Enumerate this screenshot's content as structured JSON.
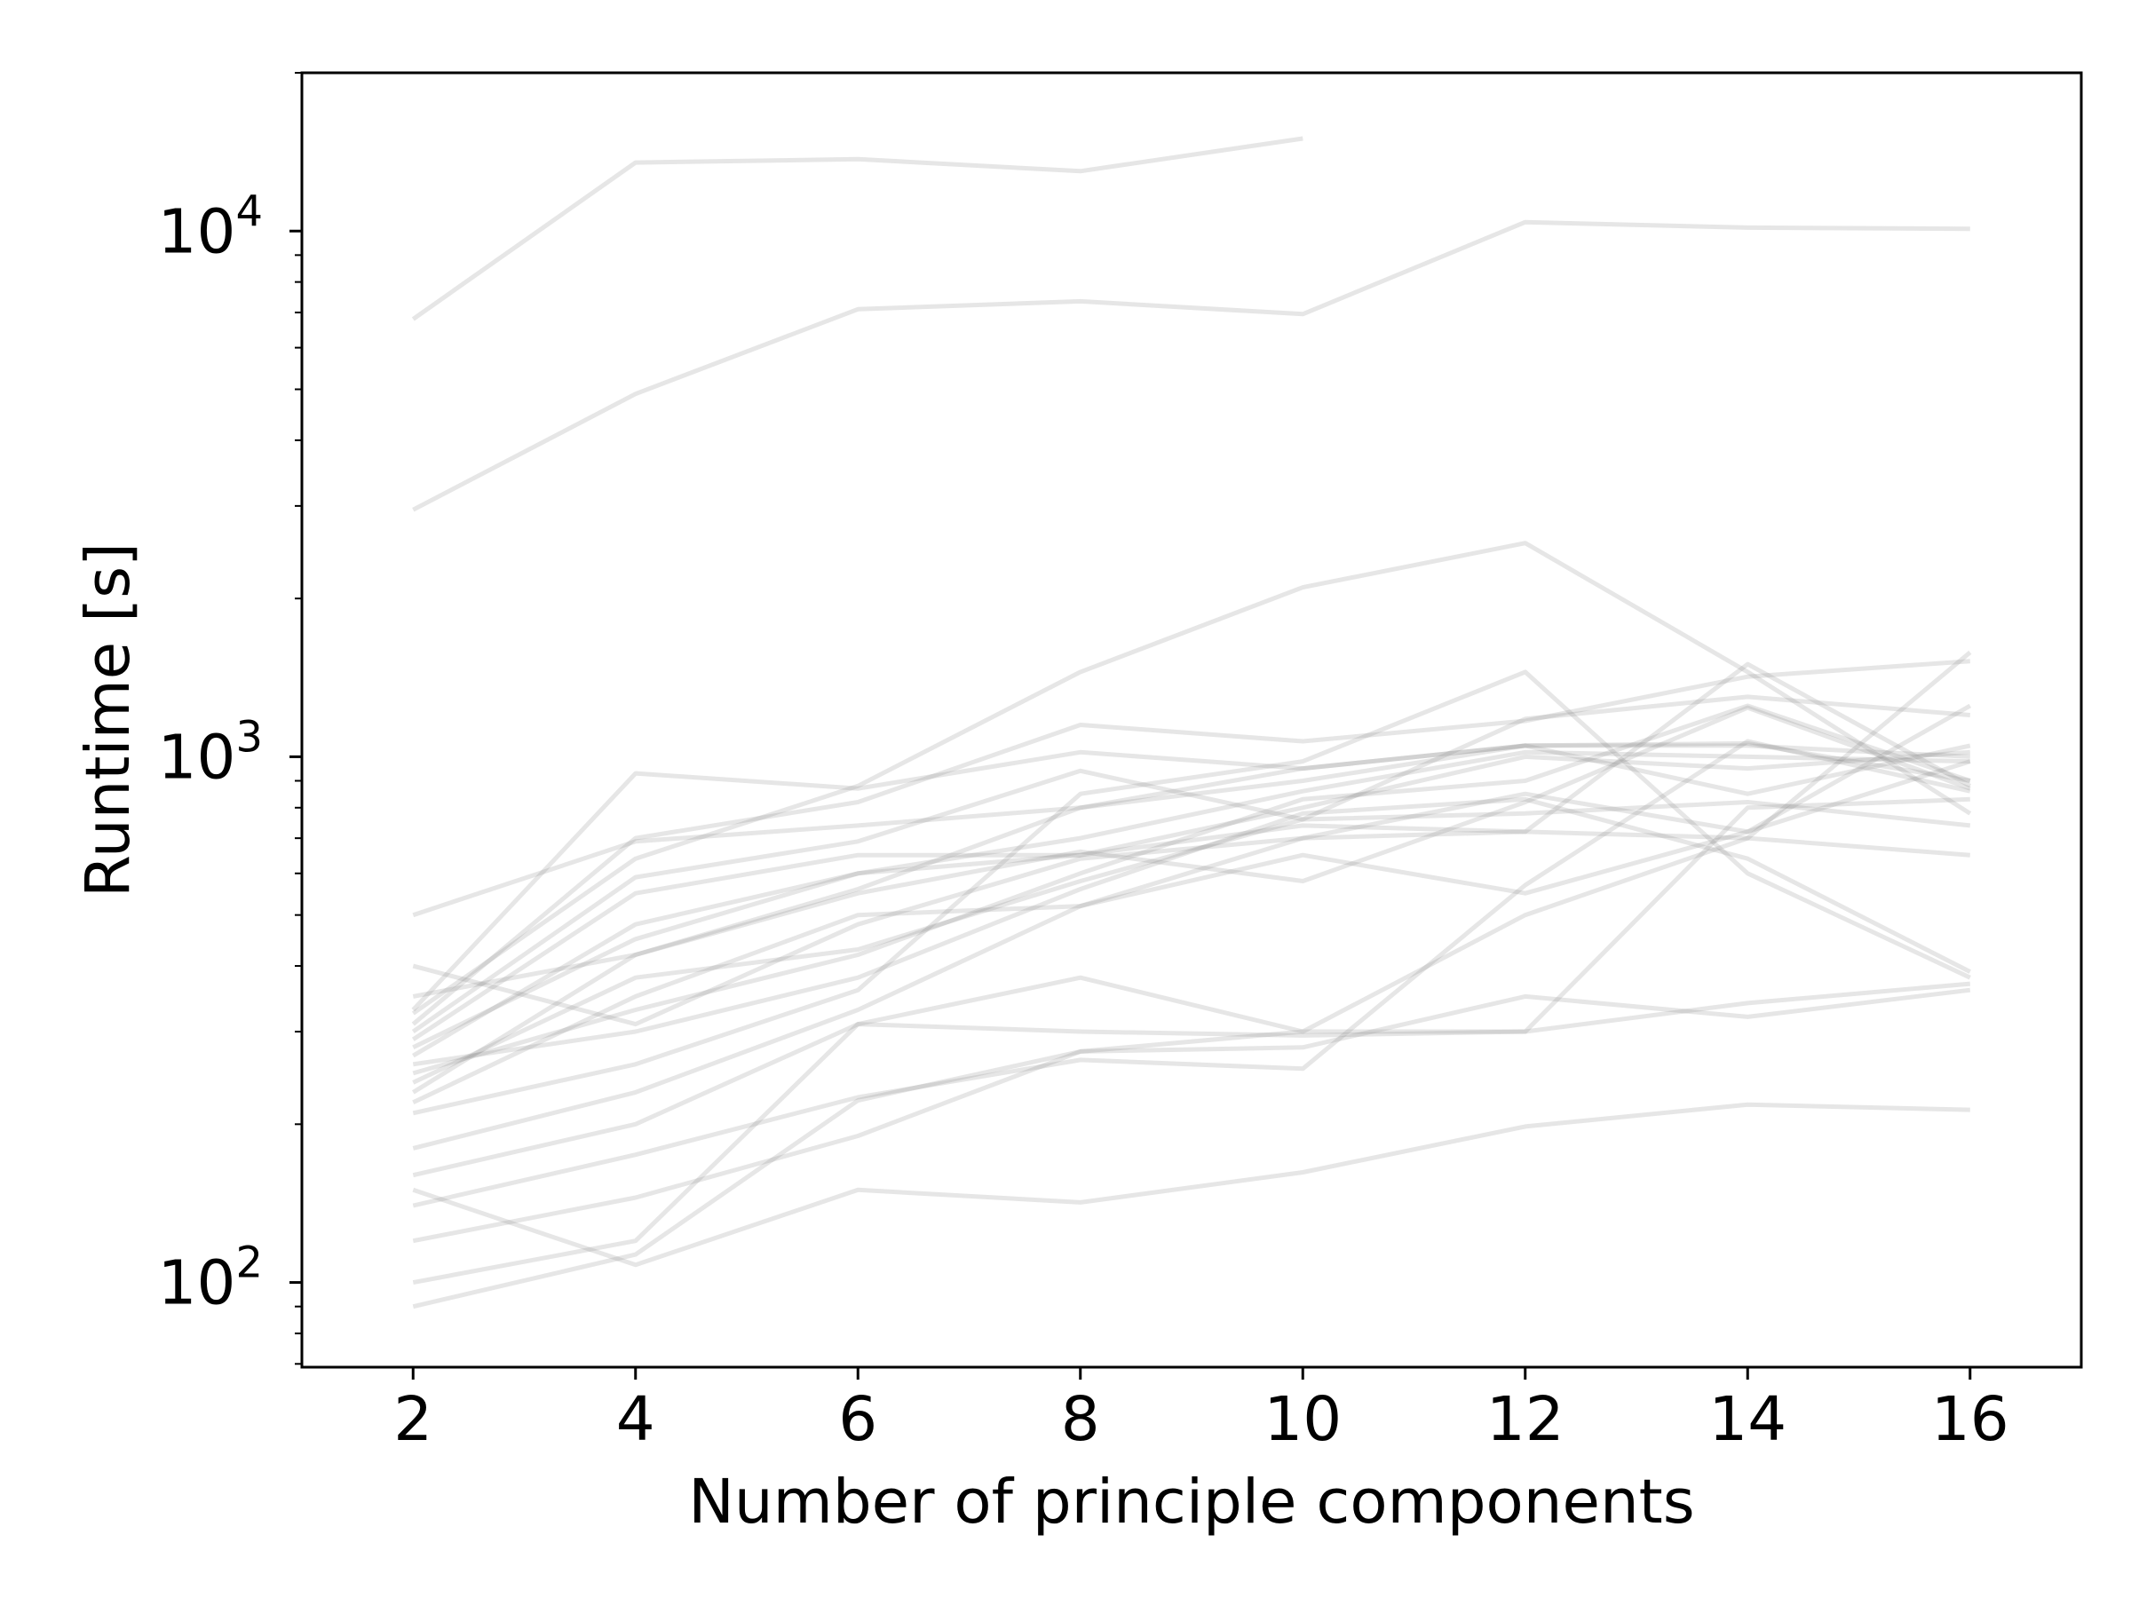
{
  "chart_data": {
    "type": "line",
    "title": "",
    "xlabel": "Number of principle components",
    "ylabel": "Runtime [s]",
    "x_ticks": [
      "2",
      "4",
      "6",
      "8",
      "10",
      "12",
      "14",
      "16"
    ],
    "y_ticks": [
      {
        "base": "10",
        "exp": "2",
        "value": 100
      },
      {
        "base": "10",
        "exp": "3",
        "value": 1000
      },
      {
        "base": "10",
        "exp": "4",
        "value": 10000
      }
    ],
    "xlim": [
      1,
      17
    ],
    "ylim": [
      69,
      20000
    ],
    "yscale": "log",
    "grid": false,
    "line_color": "#808080",
    "line_alpha": 0.2,
    "x": [
      2,
      4,
      6,
      8,
      10,
      12,
      14,
      16
    ],
    "series": [
      {
        "values": [
          6800,
          13500,
          13700,
          13000,
          15000,
          null,
          null,
          null
        ]
      },
      {
        "values": [
          2950,
          4900,
          7100,
          7350,
          6950,
          10400,
          10150,
          10100
        ]
      },
      {
        "values": [
          325,
          640,
          880,
          1450,
          2100,
          2550,
          1450,
          780
        ]
      },
      {
        "values": [
          500,
          690,
          740,
          800,
          900,
          1050,
          1050,
          1000
        ]
      },
      {
        "values": [
          330,
          930,
          870,
          1020,
          950,
          1050,
          850,
          1050
        ]
      },
      {
        "values": [
          310,
          700,
          820,
          1150,
          1070,
          1170,
          1420,
          1520
        ]
      },
      {
        "values": [
          300,
          590,
          690,
          940,
          760,
          1180,
          1300,
          1200
        ]
      },
      {
        "values": [
          290,
          550,
          650,
          650,
          800,
          1000,
          950,
          1020
        ]
      },
      {
        "values": [
          270,
          480,
          600,
          700,
          860,
          1020,
          1000,
          980
        ]
      },
      {
        "values": [
          350,
          420,
          560,
          800,
          950,
          1050,
          1060,
          900
        ]
      },
      {
        "values": [
          400,
          310,
          480,
          640,
          700,
          850,
          720,
          980
        ]
      },
      {
        "values": [
          250,
          330,
          420,
          600,
          830,
          900,
          1250,
          900
        ]
      },
      {
        "values": [
          230,
          420,
          550,
          660,
          580,
          820,
          1240,
          870
        ]
      },
      {
        "values": [
          220,
          350,
          500,
          520,
          700,
          720,
          1500,
          880
        ]
      },
      {
        "values": [
          240,
          380,
          430,
          580,
          760,
          780,
          820,
          740
        ]
      },
      {
        "values": [
          280,
          450,
          600,
          650,
          740,
          720,
          700,
          650
        ]
      },
      {
        "values": [
          260,
          300,
          380,
          560,
          780,
          830,
          640,
          390
        ]
      },
      {
        "values": [
          210,
          260,
          360,
          850,
          980,
          1450,
          600,
          380
        ]
      },
      {
        "values": [
          180,
          230,
          330,
          520,
          650,
          550,
          720,
          1250
        ]
      },
      {
        "values": [
          160,
          200,
          310,
          380,
          300,
          500,
          700,
          1580
        ]
      },
      {
        "values": [
          140,
          175,
          225,
          265,
          255,
          570,
          1070,
          860
        ]
      },
      {
        "values": [
          120,
          145,
          190,
          275,
          280,
          350,
          320,
          360
        ]
      },
      {
        "values": [
          100,
          120,
          310,
          300,
          295,
          300,
          340,
          370
        ]
      },
      {
        "values": [
          150,
          108,
          150,
          142,
          162,
          198,
          218,
          213
        ]
      },
      {
        "values": [
          90,
          113,
          222,
          275,
          300,
          300,
          800,
          830
        ]
      }
    ]
  }
}
